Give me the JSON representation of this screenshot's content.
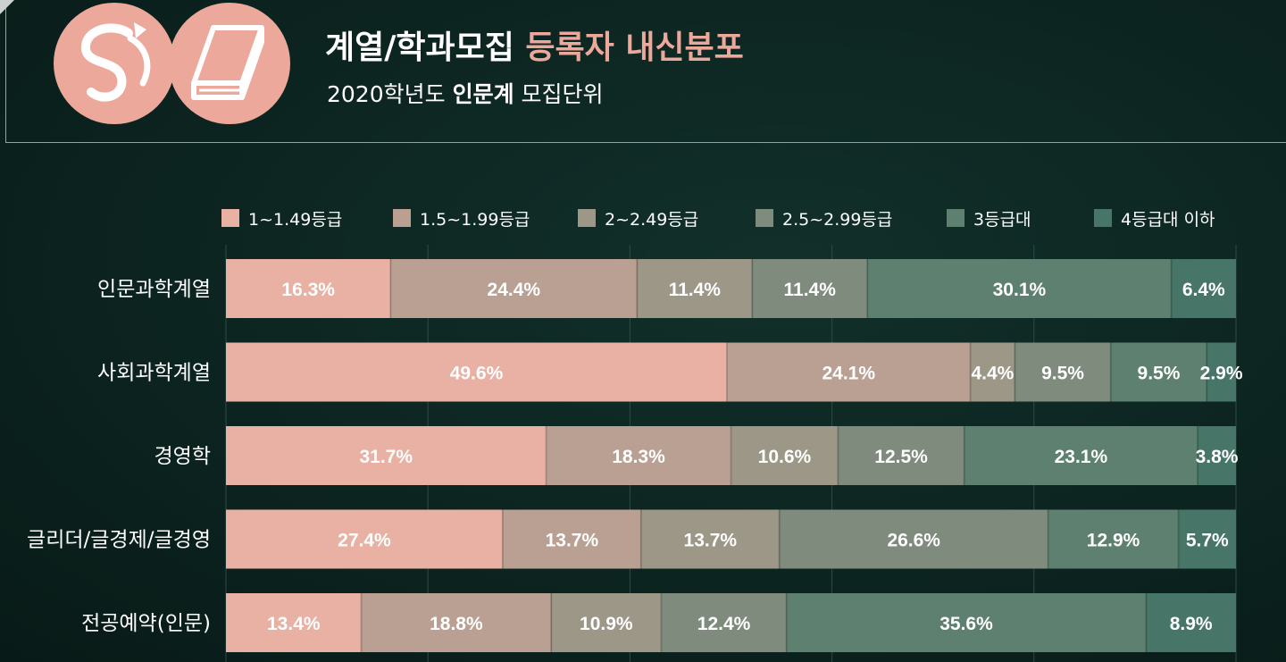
{
  "header": {
    "title_main": "계열/학과모집",
    "title_accent": "등록자 내신분포",
    "subtitle_pre": "2020학년도",
    "subtitle_bold": "인문계",
    "subtitle_post": "모집단위"
  },
  "colors": {
    "background": "#0c2420",
    "accent": "#eba89b",
    "segments": [
      "#e9b1a3",
      "#b9a093",
      "#9d9788",
      "#7e8b7d",
      "#5d8070",
      "#477668"
    ]
  },
  "chart_data": {
    "type": "bar",
    "orientation": "horizontal",
    "stacked": true,
    "categories": [
      "인문과학계열",
      "사회과학계열",
      "경영학",
      "글리더/글경제/글경영",
      "전공예약(인문)"
    ],
    "series": [
      {
        "name": "1~1.49등급",
        "values": [
          16.3,
          49.6,
          31.7,
          27.4,
          13.4
        ],
        "labels": [
          "16.3%",
          "49.6%",
          "31.7%",
          "27.4%",
          "13.4%"
        ]
      },
      {
        "name": "1.5~1.99등급",
        "values": [
          24.4,
          24.1,
          18.3,
          13.7,
          18.8
        ],
        "labels": [
          "24.4%",
          "24.1%",
          "18.3%",
          "13.7%",
          "18.8%"
        ]
      },
      {
        "name": "2~2.49등급",
        "values": [
          11.4,
          4.4,
          10.6,
          13.7,
          10.9
        ],
        "labels": [
          "11.4%",
          "4.4%",
          "10.6%",
          "13.7%",
          "10.9%"
        ]
      },
      {
        "name": "2.5~2.99등급",
        "values": [
          11.4,
          9.5,
          12.5,
          26.6,
          12.4
        ],
        "labels": [
          "11.4%",
          "9.5%",
          "12.5%",
          "26.6%",
          "12.4%"
        ]
      },
      {
        "name": "3등급대",
        "values": [
          30.1,
          9.5,
          23.1,
          12.9,
          35.6
        ],
        "labels": [
          "30.1%",
          "9.5%",
          "23.1%",
          "12.9%",
          "35.6%"
        ]
      },
      {
        "name": "4등급대 이하",
        "values": [
          6.4,
          2.9,
          3.8,
          5.7,
          8.9
        ],
        "labels": [
          "6.4%",
          "2.9%",
          "3.8%",
          "5.7%",
          "8.9%"
        ]
      }
    ],
    "xlim": [
      0,
      100
    ],
    "grid": true,
    "legend": "top"
  }
}
